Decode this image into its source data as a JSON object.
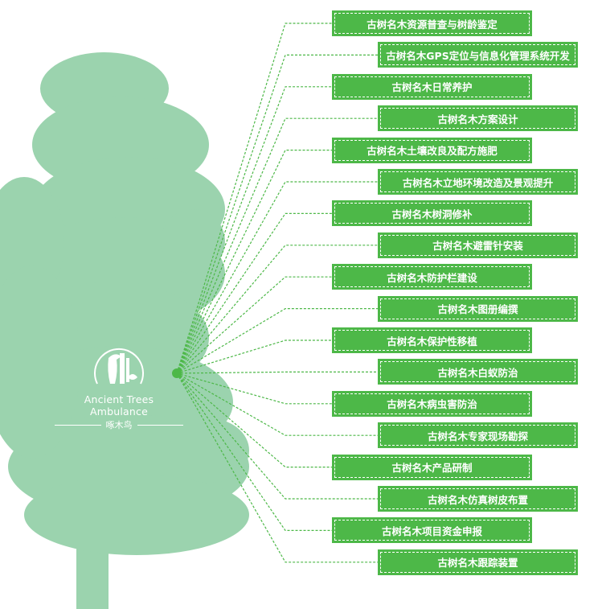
{
  "colors": {
    "tree": "#9bd3ae",
    "box": "#4db848",
    "line": "#4db848"
  },
  "logo": {
    "english": "Ancient Trees Ambulance",
    "chinese": "啄木鸟",
    "icon": "woodpecker-tree-icon"
  },
  "services": [
    "古树名木资源普查与树龄鉴定",
    "古树名木GPS定位与信息化管理系统开发",
    "古树名木日常养护",
    "古树名木方案设计",
    "古树名木土壤改良及配方施肥",
    "古树名木立地环境改造及景观提升",
    "古树名木树洞修补",
    "古树名木避雷针安装",
    "古树名木防护栏建设",
    "古树名木图册编撰",
    "古树名木保护性移植",
    "古树名木白蚁防治",
    "古树名木病虫害防治",
    "古树名木专家现场勘探",
    "古树名木产品研制",
    "古树名木仿真树皮布置",
    "古树名木项目资金申报",
    "古树名木跟踪装置"
  ]
}
